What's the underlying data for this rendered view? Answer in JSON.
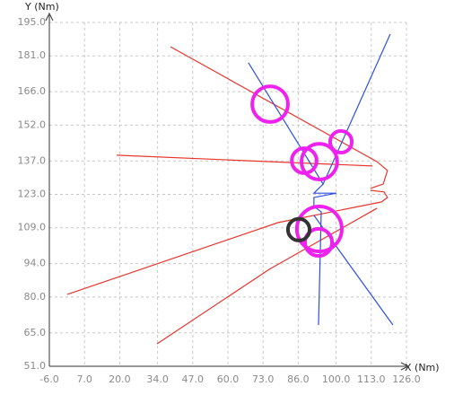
{
  "chart_data": {
    "type": "line",
    "xlabel": "X (Nm)",
    "ylabel": "Y (Nm)",
    "xlim": [
      -6,
      126
    ],
    "ylim": [
      51,
      195
    ],
    "xticks": [
      {
        "value": -6,
        "label": "-6.0"
      },
      {
        "value": 7,
        "label": "7.0"
      },
      {
        "value": 20,
        "label": "20.0"
      },
      {
        "value": 34,
        "label": "34.0"
      },
      {
        "value": 47,
        "label": "47.0"
      },
      {
        "value": 60,
        "label": "60.0"
      },
      {
        "value": 73,
        "label": "73.0"
      },
      {
        "value": 86,
        "label": "86.0"
      },
      {
        "value": 100,
        "label": "100.0"
      },
      {
        "value": 113,
        "label": "113.0"
      },
      {
        "value": 126,
        "label": "126.0"
      }
    ],
    "yticks": [
      {
        "value": 51,
        "label": "51.0"
      },
      {
        "value": 65,
        "label": "65.0"
      },
      {
        "value": 80,
        "label": "80.0"
      },
      {
        "value": 94,
        "label": "94.0"
      },
      {
        "value": 109,
        "label": "109.0"
      },
      {
        "value": 123,
        "label": "123.0"
      },
      {
        "value": 137,
        "label": "137.0"
      },
      {
        "value": 152,
        "label": "152.0"
      },
      {
        "value": 166,
        "label": "166.0"
      },
      {
        "value": 181,
        "label": "181.0"
      },
      {
        "value": 195,
        "label": "195.0"
      }
    ],
    "grid": true,
    "series": [
      {
        "color": "#e8362c",
        "x": [
          38.8,
          115.1,
          119.0,
          117.4,
          112.7
        ],
        "values": [
          184.8,
          136.7,
          133.0,
          127.3,
          125.5
        ]
      },
      {
        "color": "#e8362c",
        "x": [
          18.9,
          58.7,
          113.4
        ],
        "values": [
          139.4,
          137.5,
          134.9
        ]
      },
      {
        "color": "#e8362c",
        "x": [
          0.6,
          78.6,
          116.7,
          119.0,
          117.7,
          112.7
        ],
        "values": [
          81.1,
          111.2,
          119.8,
          121.7,
          124.0,
          124.7
        ]
      },
      {
        "color": "#e8362c",
        "x": [
          33.8,
          75.3,
          115.1
        ],
        "values": [
          60.4,
          91.6,
          117.2
        ]
      },
      {
        "color": "#2f4fe0",
        "x": [
          67.6,
          95.2,
          91.8,
          100.1,
          91.8,
          91.8,
          94.5,
          93.5
        ],
        "values": [
          178.1,
          127.3,
          123.5,
          123.5,
          121.7,
          117.9,
          115.7,
          68.3
        ]
      },
      {
        "color": "#2f4fe0",
        "x": [
          120.0,
          95.2
        ],
        "values": [
          190.1,
          127.3
        ]
      },
      {
        "color": "#2f4fe0",
        "x": [
          91.8,
          121.0
        ],
        "values": [
          114.2,
          68.3
        ]
      }
    ],
    "rings": [
      {
        "color": "#ee22ee",
        "x": 75.6,
        "y": 160.8,
        "r": 6.6
      },
      {
        "color": "#ee22ee",
        "x": 101.8,
        "y": 145.0,
        "r": 4.0
      },
      {
        "color": "#ee22ee",
        "x": 93.8,
        "y": 136.7,
        "r": 6.6
      },
      {
        "color": "#ee22ee",
        "x": 88.2,
        "y": 137.1,
        "r": 4.6
      },
      {
        "color": "#ee22ee",
        "x": 93.8,
        "y": 108.5,
        "r": 8.3
      },
      {
        "color": "#ee22ee",
        "x": 93.5,
        "y": 102.9,
        "r": 5.0
      },
      {
        "color": "#333333",
        "x": 86.2,
        "y": 108.2,
        "r": 4.0
      }
    ]
  }
}
